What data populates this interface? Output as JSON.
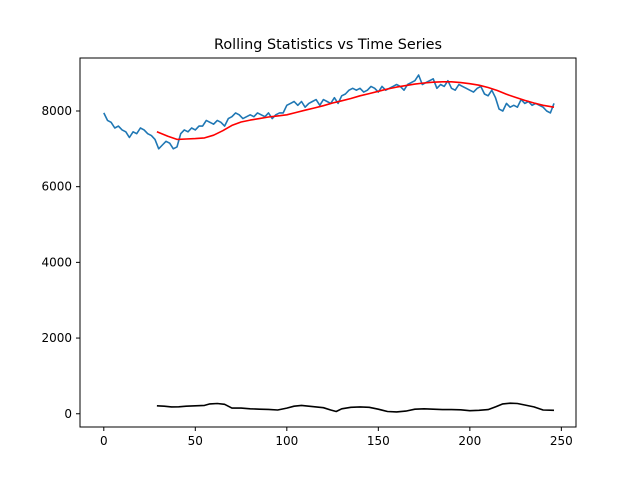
{
  "chart_data": {
    "type": "line",
    "title": "Rolling Statistics vs Time Series",
    "xlabel": "",
    "ylabel": "",
    "xlim": [
      -13,
      258
    ],
    "ylim": [
      -350,
      9400
    ],
    "x_ticks": [
      0,
      50,
      100,
      150,
      200,
      250
    ],
    "y_ticks": [
      0,
      2000,
      4000,
      6000,
      8000
    ],
    "x_tick_labels": [
      "0",
      "50",
      "100",
      "150",
      "200",
      "250"
    ],
    "y_tick_labels": [
      "0",
      "2000",
      "4000",
      "6000",
      "8000"
    ],
    "grid": false,
    "legend": "none",
    "series": [
      {
        "color": "#1f77b4",
        "x": [
          0,
          2,
          4,
          6,
          8,
          10,
          12,
          14,
          16,
          18,
          20,
          22,
          24,
          26,
          28,
          30,
          32,
          34,
          36,
          38,
          40,
          42,
          44,
          46,
          48,
          50,
          52,
          54,
          56,
          58,
          60,
          62,
          64,
          66,
          68,
          70,
          72,
          74,
          76,
          78,
          80,
          82,
          84,
          86,
          88,
          90,
          92,
          94,
          96,
          98,
          100,
          102,
          104,
          106,
          108,
          110,
          112,
          114,
          116,
          118,
          120,
          122,
          124,
          126,
          128,
          130,
          132,
          134,
          136,
          138,
          140,
          142,
          144,
          146,
          148,
          150,
          152,
          154,
          156,
          158,
          160,
          162,
          164,
          166,
          168,
          170,
          172,
          174,
          176,
          178,
          180,
          182,
          184,
          186,
          188,
          190,
          192,
          194,
          196,
          198,
          200,
          202,
          204,
          206,
          208,
          210,
          212,
          214,
          216,
          218,
          220,
          222,
          224,
          226,
          228,
          230,
          232,
          234,
          236,
          238,
          240,
          242,
          244,
          246
        ],
        "y": [
          7950,
          7750,
          7700,
          7550,
          7600,
          7500,
          7450,
          7300,
          7450,
          7400,
          7550,
          7500,
          7400,
          7350,
          7250,
          7000,
          7100,
          7200,
          7150,
          7000,
          7050,
          7400,
          7500,
          7450,
          7550,
          7500,
          7600,
          7600,
          7750,
          7700,
          7650,
          7750,
          7700,
          7600,
          7800,
          7850,
          7950,
          7900,
          7800,
          7850,
          7900,
          7850,
          7950,
          7900,
          7850,
          7950,
          7800,
          7900,
          7950,
          7950,
          8150,
          8200,
          8250,
          8150,
          8250,
          8100,
          8200,
          8250,
          8300,
          8150,
          8300,
          8250,
          8200,
          8350,
          8200,
          8400,
          8450,
          8550,
          8600,
          8550,
          8600,
          8500,
          8550,
          8650,
          8600,
          8500,
          8650,
          8550,
          8600,
          8650,
          8700,
          8650,
          8550,
          8700,
          8750,
          8800,
          8950,
          8700,
          8750,
          8800,
          8850,
          8600,
          8700,
          8650,
          8800,
          8600,
          8550,
          8700,
          8650,
          8600,
          8550,
          8500,
          8600,
          8650,
          8450,
          8400,
          8550,
          8350,
          8050,
          8000,
          8200,
          8100,
          8150,
          8100,
          8300,
          8200,
          8250,
          8150,
          8200,
          8150,
          8100,
          8000,
          7950,
          8200
        ]
      },
      {
        "color": "#ff0000",
        "x": [
          29,
          35,
          40,
          45,
          50,
          55,
          60,
          65,
          70,
          75,
          80,
          85,
          90,
          95,
          100,
          105,
          110,
          115,
          120,
          125,
          130,
          135,
          140,
          145,
          150,
          155,
          160,
          165,
          170,
          175,
          180,
          185,
          190,
          195,
          200,
          205,
          210,
          215,
          220,
          225,
          230,
          235,
          240,
          246
        ],
        "y": [
          7450,
          7330,
          7250,
          7260,
          7270,
          7290,
          7360,
          7480,
          7620,
          7710,
          7760,
          7800,
          7840,
          7870,
          7900,
          7960,
          8020,
          8080,
          8140,
          8210,
          8270,
          8330,
          8400,
          8460,
          8520,
          8580,
          8630,
          8670,
          8710,
          8740,
          8760,
          8770,
          8770,
          8750,
          8720,
          8680,
          8620,
          8540,
          8440,
          8360,
          8280,
          8210,
          8150,
          8100
        ]
      },
      {
        "color": "#000000",
        "x": [
          29,
          33,
          37,
          41,
          45,
          50,
          55,
          58,
          62,
          66,
          70,
          75,
          80,
          85,
          90,
          95,
          100,
          104,
          108,
          112,
          116,
          120,
          124,
          127,
          130,
          135,
          140,
          145,
          150,
          155,
          160,
          165,
          170,
          175,
          180,
          185,
          190,
          195,
          200,
          205,
          210,
          214,
          218,
          222,
          226,
          230,
          235,
          240,
          246
        ],
        "y": [
          210,
          200,
          180,
          185,
          200,
          210,
          220,
          260,
          270,
          250,
          150,
          150,
          130,
          120,
          115,
          100,
          150,
          200,
          220,
          200,
          180,
          160,
          100,
          60,
          130,
          170,
          180,
          170,
          120,
          60,
          50,
          70,
          120,
          130,
          120,
          110,
          110,
          105,
          80,
          90,
          110,
          180,
          260,
          280,
          270,
          230,
          180,
          100,
          90
        ]
      }
    ]
  }
}
